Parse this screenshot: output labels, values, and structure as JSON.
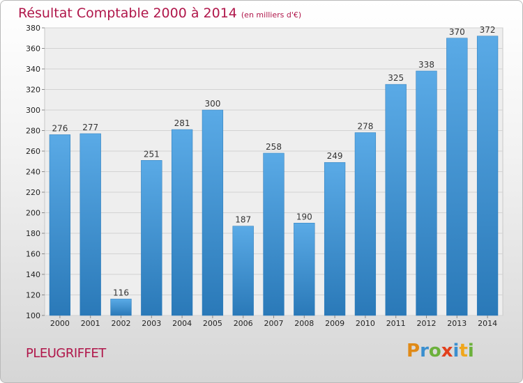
{
  "title": "Résultat Comptable 2000 à 2014",
  "subtitle": "(en milliers d'€)",
  "commune": "PLEUGRIFFET",
  "logo": {
    "p": "P",
    "r": "r",
    "o": "o",
    "x": "x",
    "i": "i",
    "t": "t",
    "i2": "i"
  },
  "colors": {
    "bar": "#4a9fe0",
    "bar_dark": "#2a79b8",
    "title": "#b0164a"
  },
  "chart_data": {
    "type": "bar",
    "categories": [
      "2000",
      "2001",
      "2002",
      "2003",
      "2004",
      "2005",
      "2006",
      "2007",
      "2008",
      "2009",
      "2010",
      "2011",
      "2012",
      "2013",
      "2014"
    ],
    "values": [
      276,
      277,
      116,
      251,
      281,
      300,
      187,
      258,
      190,
      249,
      278,
      325,
      338,
      370,
      372
    ],
    "ylim": [
      100,
      380
    ],
    "yticks": [
      100,
      120,
      140,
      160,
      180,
      200,
      220,
      240,
      260,
      280,
      300,
      320,
      340,
      360,
      380
    ],
    "grid": true,
    "xlabel": "",
    "ylabel": ""
  }
}
